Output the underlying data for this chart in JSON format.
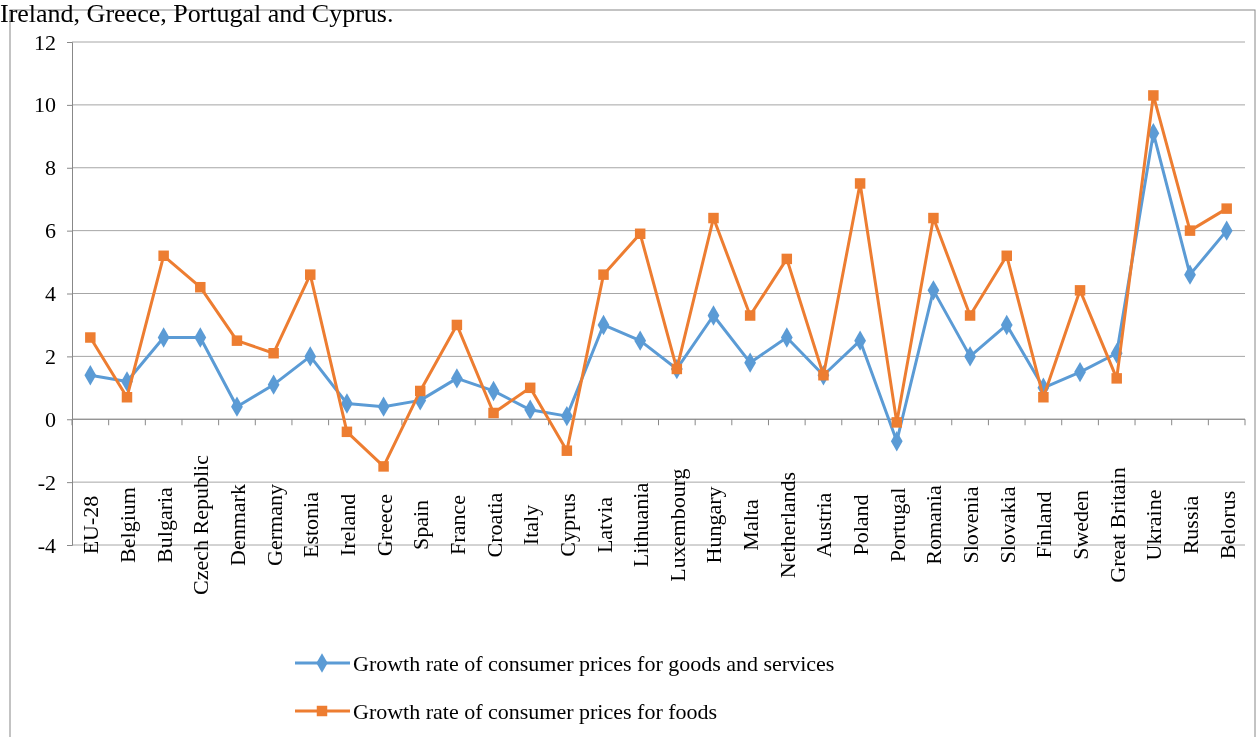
{
  "chart_data": {
    "type": "line",
    "annotations": [
      "Ireland, Greece, Portugal and Cyprus."
    ],
    "categories": [
      "EU-28",
      "Belgium",
      "Bulgaria",
      "Czech Republic",
      "Denmark",
      "Germany",
      "Estonia",
      "Ireland",
      "Greece",
      "Spain",
      "France",
      "Croatia",
      "Italy",
      "Cyprus",
      "Latvia",
      "Lithuania",
      "Luxembourg",
      "Hungary",
      "Malta",
      "Netherlands",
      "Austria",
      "Poland",
      "Portugal",
      "Romania",
      "Slovenia",
      "Slovakia",
      "Finland",
      "Sweden",
      "Great Britain",
      "Ukraine",
      "Russia",
      "Belorus"
    ],
    "series": [
      {
        "name": "Growth rate of consumer prices for goods and services",
        "color": "#5b9bd5",
        "marker": "diamond",
        "values": [
          1.4,
          1.2,
          2.6,
          2.6,
          0.4,
          1.1,
          2.0,
          0.5,
          0.4,
          0.6,
          1.3,
          0.9,
          0.3,
          0.1,
          3.0,
          2.5,
          1.6,
          3.3,
          1.8,
          2.6,
          1.4,
          2.5,
          -0.7,
          4.1,
          2.0,
          3.0,
          1.0,
          1.5,
          2.1,
          9.1,
          4.6,
          6.0
        ]
      },
      {
        "name": "Growth rate of consumer prices for foods",
        "color": "#ed7d31",
        "marker": "square",
        "values": [
          2.6,
          0.7,
          5.2,
          4.2,
          2.5,
          2.1,
          4.6,
          -0.4,
          -1.5,
          0.9,
          3.0,
          0.2,
          1.0,
          -1.0,
          4.6,
          5.9,
          1.6,
          6.4,
          3.3,
          5.1,
          1.4,
          7.5,
          -0.1,
          6.4,
          3.3,
          5.2,
          0.7,
          4.1,
          1.3,
          10.3,
          6.0,
          6.7
        ]
      }
    ],
    "ylim": [
      -4,
      12
    ],
    "yticks": [
      -4,
      -2,
      0,
      2,
      4,
      6,
      8,
      10,
      12
    ],
    "grid": "y",
    "legend": "bottom",
    "line_style": "solid"
  }
}
